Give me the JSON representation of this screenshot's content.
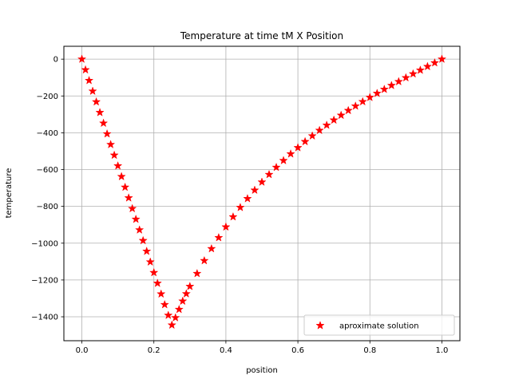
{
  "chart_data": {
    "type": "scatter",
    "title": "Temperature at time tM X Position",
    "xlabel": "position",
    "ylabel": "temperature",
    "xlim": [
      -0.05,
      1.05
    ],
    "ylim": [
      -1530,
      70
    ],
    "xticks": [
      0.0,
      0.2,
      0.4,
      0.6,
      0.8,
      1.0
    ],
    "xtick_labels": [
      "0.0",
      "0.2",
      "0.4",
      "0.6",
      "0.8",
      "1.0"
    ],
    "yticks": [
      0,
      -200,
      -400,
      -600,
      -800,
      -1000,
      -1200,
      -1400
    ],
    "ytick_labels": [
      "0",
      "−200",
      "−400",
      "−600",
      "−800",
      "−1000",
      "−1200",
      "−1400"
    ],
    "grid": true,
    "legend": "lower right",
    "series": [
      {
        "name": "aproximate solution",
        "marker": "star",
        "color": "#ff0000",
        "points": [
          [
            0.0,
            0
          ],
          [
            0.01,
            -58
          ],
          [
            0.02,
            -116
          ],
          [
            0.03,
            -174
          ],
          [
            0.04,
            -232
          ],
          [
            0.05,
            -290
          ],
          [
            0.06,
            -348
          ],
          [
            0.07,
            -406
          ],
          [
            0.08,
            -464
          ],
          [
            0.09,
            -522
          ],
          [
            0.1,
            -580
          ],
          [
            0.11,
            -638
          ],
          [
            0.12,
            -696
          ],
          [
            0.13,
            -754
          ],
          [
            0.14,
            -812
          ],
          [
            0.15,
            -870
          ],
          [
            0.16,
            -928
          ],
          [
            0.17,
            -986
          ],
          [
            0.18,
            -1044
          ],
          [
            0.19,
            -1102
          ],
          [
            0.2,
            -1160
          ],
          [
            0.21,
            -1218
          ],
          [
            0.22,
            -1276
          ],
          [
            0.23,
            -1334
          ],
          [
            0.24,
            -1392
          ],
          [
            0.25,
            -1445
          ],
          [
            0.26,
            -1405
          ],
          [
            0.27,
            -1360
          ],
          [
            0.28,
            -1315
          ],
          [
            0.29,
            -1275
          ],
          [
            0.3,
            -1235
          ],
          [
            0.32,
            -1165
          ],
          [
            0.34,
            -1095
          ],
          [
            0.36,
            -1030
          ],
          [
            0.38,
            -970
          ],
          [
            0.4,
            -912
          ],
          [
            0.42,
            -857
          ],
          [
            0.44,
            -806
          ],
          [
            0.46,
            -758
          ],
          [
            0.48,
            -712
          ],
          [
            0.5,
            -668
          ],
          [
            0.52,
            -627
          ],
          [
            0.54,
            -588
          ],
          [
            0.56,
            -551
          ],
          [
            0.58,
            -515
          ],
          [
            0.6,
            -481
          ],
          [
            0.62,
            -448
          ],
          [
            0.64,
            -417
          ],
          [
            0.66,
            -387
          ],
          [
            0.68,
            -359
          ],
          [
            0.7,
            -331
          ],
          [
            0.72,
            -305
          ],
          [
            0.74,
            -279
          ],
          [
            0.76,
            -255
          ],
          [
            0.78,
            -231
          ],
          [
            0.8,
            -208
          ],
          [
            0.82,
            -186
          ],
          [
            0.84,
            -164
          ],
          [
            0.86,
            -143
          ],
          [
            0.88,
            -122
          ],
          [
            0.9,
            -101
          ],
          [
            0.92,
            -80
          ],
          [
            0.94,
            -60
          ],
          [
            0.96,
            -40
          ],
          [
            0.98,
            -20
          ],
          [
            1.0,
            0
          ]
        ]
      }
    ]
  }
}
